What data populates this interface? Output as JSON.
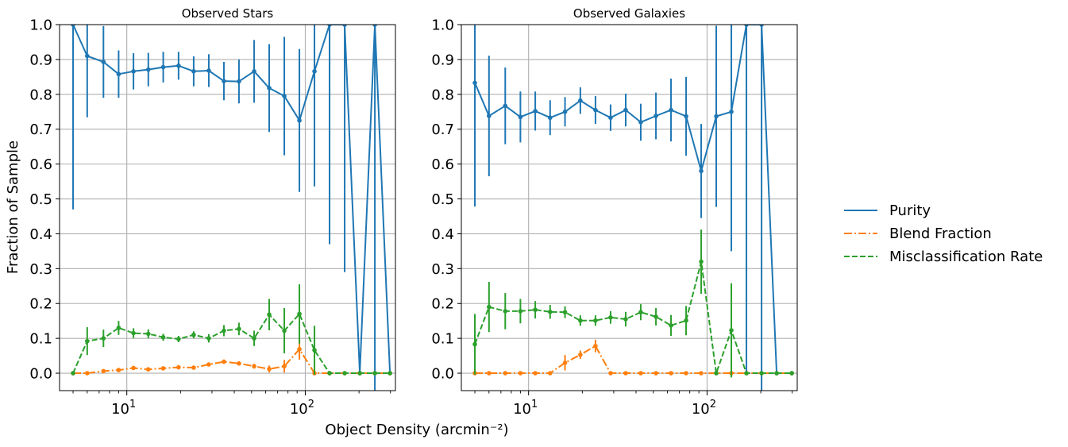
{
  "figure": {
    "ylabel": "Fraction of Sample",
    "xlabel": "Object Density  (arcmin⁻²)",
    "legend": [
      "Purity",
      "Blend Fraction",
      "Misclassification Rate"
    ]
  },
  "colors": {
    "purity": "#1f77b4",
    "blend": "#ff7f0e",
    "misclass": "#2ca02c",
    "grid": "#b0b0b0"
  },
  "chart_data": [
    {
      "type": "line",
      "title": "Observed Stars",
      "xscale": "log",
      "xlim": [
        4.2,
        320
      ],
      "ylim": [
        -0.05,
        1.0
      ],
      "xticks": [
        {
          "v": 10,
          "base": "10",
          "exp": "1"
        },
        {
          "v": 100,
          "base": "10",
          "exp": "2"
        }
      ],
      "yticks": [
        "0.0",
        "0.1",
        "0.2",
        "0.3",
        "0.4",
        "0.5",
        "0.6",
        "0.7",
        "0.8",
        "0.9",
        "1.0"
      ],
      "grid": true,
      "x": [
        5,
        6,
        7.4,
        9,
        10.9,
        13.2,
        16,
        19.5,
        23.7,
        28.8,
        35,
        42.5,
        51.7,
        62.8,
        76.3,
        92.7,
        112.6,
        136.8,
        166.2,
        202,
        245.4,
        298.2
      ],
      "series": [
        {
          "name": "Purity",
          "style": "solid",
          "values": [
            1.0,
            0.91,
            0.893,
            0.858,
            0.866,
            0.871,
            0.878,
            0.882,
            0.866,
            0.868,
            0.838,
            0.837,
            0.866,
            0.818,
            0.795,
            0.725,
            0.866,
            1.0,
            1.0,
            0.0,
            1.0,
            0.0
          ],
          "err": [
            0.53,
            0.176,
            0.103,
            0.068,
            0.052,
            0.048,
            0.044,
            0.04,
            0.043,
            0.047,
            0.055,
            0.063,
            0.09,
            0.126,
            0.17,
            0.205,
            0.33,
            0.63,
            0.71,
            0,
            1.05,
            0
          ]
        },
        {
          "name": "Blend Fraction",
          "style": "dashdot",
          "values": [
            0.0,
            0.0,
            0.006,
            0.009,
            0.015,
            0.011,
            0.014,
            0.017,
            0.016,
            0.025,
            0.033,
            0.028,
            0.02,
            0.012,
            0.02,
            0.069,
            0.0,
            0.0,
            0.0,
            0.0,
            0.0,
            0.0
          ],
          "err": [
            0,
            0.004,
            0.004,
            0.004,
            0.004,
            0.004,
            0.004,
            0.004,
            0.004,
            0.005,
            0.006,
            0.006,
            0.007,
            0.01,
            0.018,
            0.03,
            0,
            0,
            0,
            0,
            0,
            0
          ]
        },
        {
          "name": "Misclassification Rate",
          "style": "dashed",
          "values": [
            0.0,
            0.092,
            0.1,
            0.13,
            0.115,
            0.113,
            0.103,
            0.098,
            0.11,
            0.1,
            0.122,
            0.127,
            0.1,
            0.168,
            0.122,
            0.17,
            0.066,
            0.0,
            0.0,
            0.0,
            0.0,
            0.0
          ],
          "err": [
            0,
            0.04,
            0.025,
            0.02,
            0.014,
            0.013,
            0.01,
            0.009,
            0.01,
            0.012,
            0.016,
            0.018,
            0.022,
            0.045,
            0.065,
            0.085,
            0.07,
            0,
            0,
            0,
            0,
            0
          ]
        }
      ]
    },
    {
      "type": "line",
      "title": "Observed Galaxies",
      "xscale": "log",
      "xlim": [
        4.2,
        320
      ],
      "ylim": [
        -0.05,
        1.0
      ],
      "xticks": [
        {
          "v": 10,
          "base": "10",
          "exp": "1"
        },
        {
          "v": 100,
          "base": "10",
          "exp": "2"
        }
      ],
      "yticks": [
        "0.0",
        "0.1",
        "0.2",
        "0.3",
        "0.4",
        "0.5",
        "0.6",
        "0.7",
        "0.8",
        "0.9",
        "1.0"
      ],
      "grid": true,
      "x": [
        5,
        6,
        7.4,
        9,
        10.9,
        13.2,
        16,
        19.5,
        23.7,
        28.8,
        35,
        42.5,
        51.7,
        62.8,
        76.3,
        92.7,
        112.6,
        136.8,
        166.2,
        202,
        245.4,
        298.2
      ],
      "series": [
        {
          "name": "Purity",
          "style": "solid",
          "values": [
            0.833,
            0.738,
            0.767,
            0.735,
            0.752,
            0.733,
            0.75,
            0.782,
            0.755,
            0.733,
            0.755,
            0.72,
            0.738,
            0.755,
            0.737,
            0.58,
            0.737,
            0.75,
            1.0,
            1.0,
            0.0,
            0.0
          ],
          "err": [
            0.355,
            0.173,
            0.11,
            0.073,
            0.056,
            0.05,
            0.042,
            0.038,
            0.04,
            0.038,
            0.047,
            0.053,
            0.067,
            0.09,
            0.113,
            0.135,
            0.26,
            0.4,
            1.0,
            1.1,
            0,
            0
          ]
        },
        {
          "name": "Blend Fraction",
          "style": "dashdot",
          "values": [
            0.0,
            0.0,
            0.0,
            0.0,
            0.0,
            0.0,
            0.03,
            0.053,
            0.078,
            0.0,
            0.0,
            0.0,
            0.0,
            0.0,
            0.0,
            0.0,
            0.0,
            0.0,
            0.0,
            0.0,
            0.0,
            0.0
          ],
          "err": [
            0,
            0,
            0,
            0,
            0,
            0,
            0.022,
            0.012,
            0.018,
            0,
            0,
            0,
            0,
            0,
            0,
            0,
            0,
            0,
            0,
            0,
            0,
            0
          ]
        },
        {
          "name": "Misclassification Rate",
          "style": "dashed",
          "values": [
            0.083,
            0.19,
            0.178,
            0.178,
            0.182,
            0.176,
            0.175,
            0.151,
            0.151,
            0.16,
            0.155,
            0.175,
            0.162,
            0.137,
            0.151,
            0.32,
            0.0,
            0.123,
            0.0,
            0.0,
            0.0,
            0.0
          ],
          "err": [
            0.087,
            0.072,
            0.052,
            0.035,
            0.025,
            0.02,
            0.017,
            0.015,
            0.015,
            0.018,
            0.021,
            0.023,
            0.025,
            0.03,
            0.042,
            0.092,
            0,
            0.135,
            0,
            0,
            0,
            0
          ]
        }
      ]
    }
  ]
}
